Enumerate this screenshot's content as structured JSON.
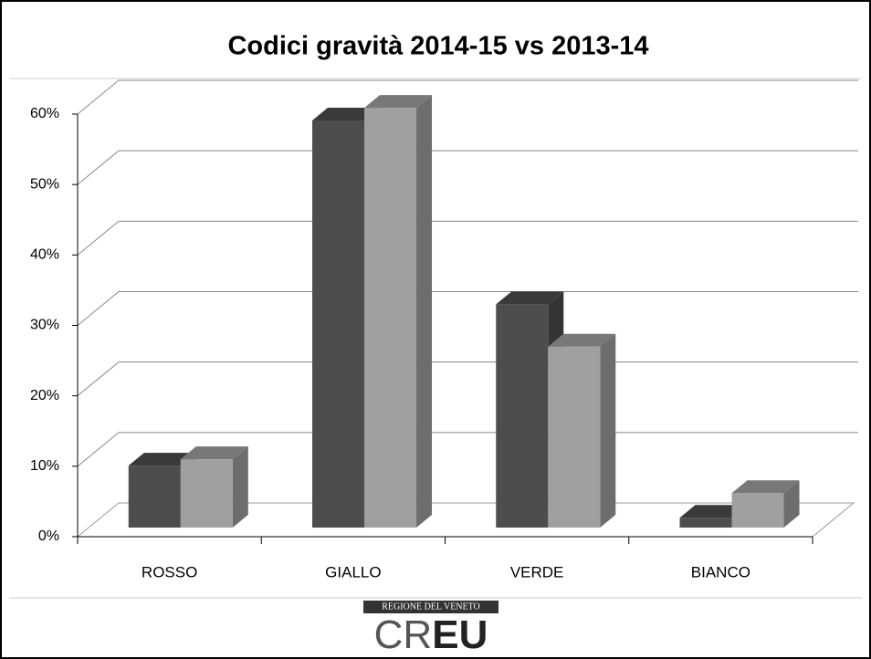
{
  "chart_data": {
    "type": "bar3d",
    "title": "Codici gravità 2014-15 vs 2013-14",
    "categories": [
      "ROSSO",
      "GIALLO",
      "VERDE",
      "BIANCO"
    ],
    "series": [
      {
        "color": "#4d4d4d",
        "values": [
          8.8,
          57.8,
          31.7,
          1.4
        ]
      },
      {
        "color": "#a0a0a0",
        "values": [
          9.7,
          59.6,
          25.7,
          4.9
        ]
      }
    ],
    "ylim": [
      0,
      60
    ],
    "yticks": [
      {
        "value": 0,
        "label": "0%"
      },
      {
        "value": 10,
        "label": "10%"
      },
      {
        "value": 20,
        "label": "20%"
      },
      {
        "value": 30,
        "label": "30%"
      },
      {
        "value": 40,
        "label": "40%"
      },
      {
        "value": 50,
        "label": "50%"
      },
      {
        "value": 60,
        "label": "60%"
      }
    ],
    "grid": true
  },
  "footer": {
    "region": "REGIONE DEL VENETO",
    "logo": [
      "CR",
      "EU"
    ]
  }
}
